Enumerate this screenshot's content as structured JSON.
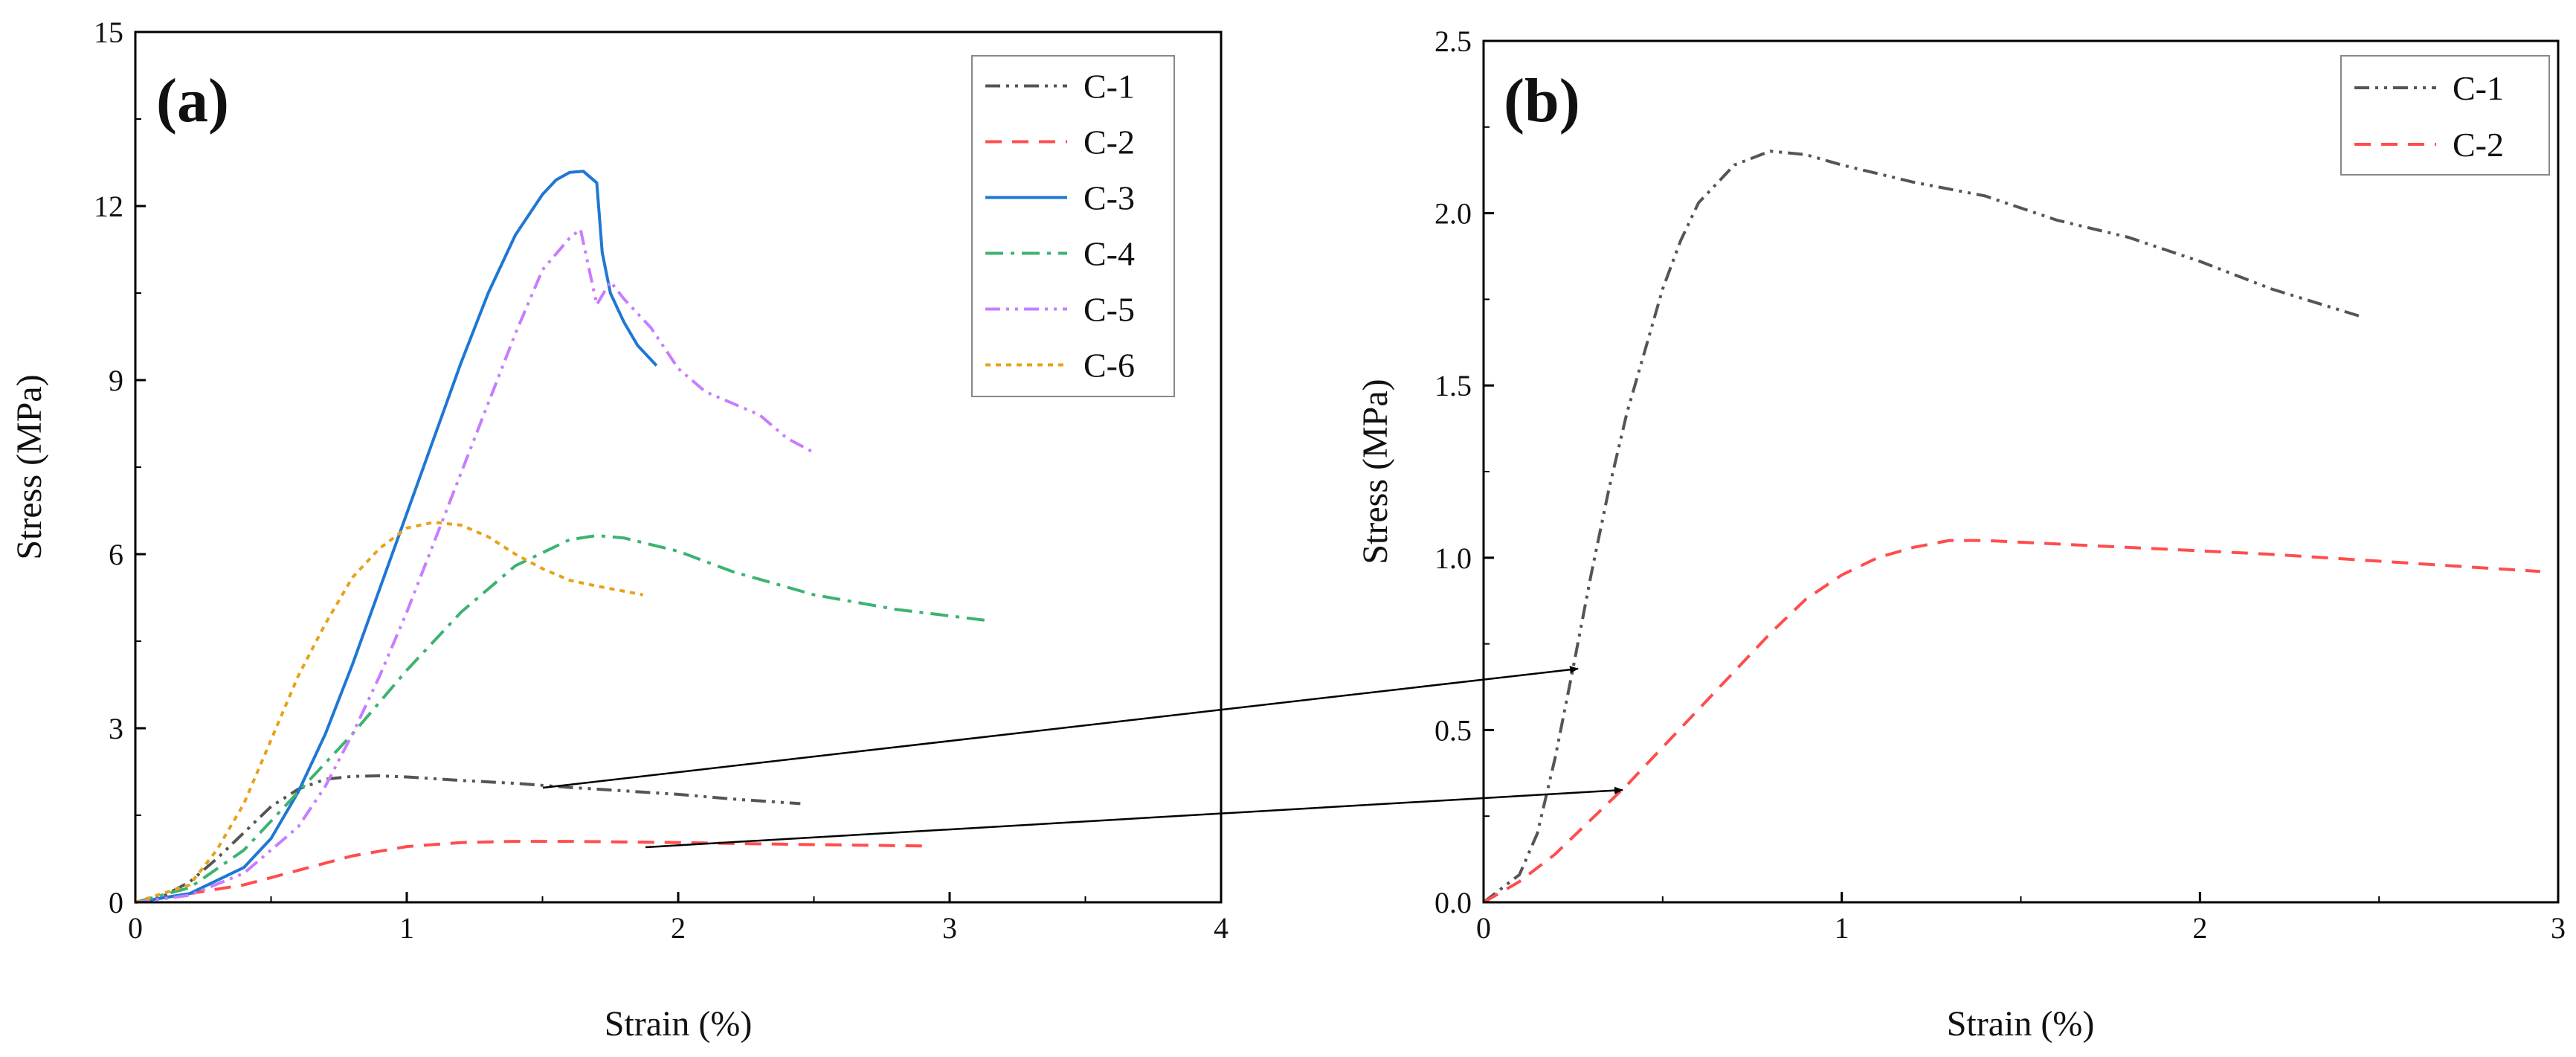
{
  "chart_data": [
    {
      "type": "line",
      "panel_label": "(a)",
      "xlabel": "Strain (%)",
      "ylabel": "Stress (MPa)",
      "xlim": [
        0,
        4
      ],
      "ylim": [
        0,
        15
      ],
      "xticks": [
        "0",
        "1",
        "2",
        "3",
        "4"
      ],
      "yticks": [
        "0",
        "3",
        "6",
        "9",
        "12",
        "15"
      ],
      "legend_position": "top-right",
      "series": [
        {
          "name": "C-1",
          "color": "#555555",
          "dash": "dashdotdot",
          "x": [
            0,
            0.1,
            0.2,
            0.3,
            0.4,
            0.5,
            0.6,
            0.7,
            0.8,
            0.9,
            1.0,
            1.2,
            1.4,
            1.6,
            1.8,
            2.0,
            2.2,
            2.45
          ],
          "y": [
            0,
            0.1,
            0.35,
            0.75,
            1.2,
            1.65,
            1.95,
            2.12,
            2.17,
            2.18,
            2.16,
            2.1,
            2.05,
            1.98,
            1.92,
            1.86,
            1.78,
            1.7
          ]
        },
        {
          "name": "C-2",
          "color": "#ff4d4d",
          "dash": "dashed",
          "x": [
            0,
            0.2,
            0.4,
            0.6,
            0.8,
            1.0,
            1.2,
            1.4,
            1.6,
            2.0,
            2.4,
            2.9
          ],
          "y": [
            0,
            0.15,
            0.3,
            0.55,
            0.8,
            0.96,
            1.03,
            1.05,
            1.05,
            1.03,
            1.0,
            0.97
          ]
        },
        {
          "name": "C-3",
          "color": "#1f77d4",
          "dash": "solid",
          "x": [
            0,
            0.2,
            0.4,
            0.5,
            0.6,
            0.7,
            0.8,
            0.9,
            1.0,
            1.1,
            1.2,
            1.3,
            1.4,
            1.5,
            1.55,
            1.6,
            1.65,
            1.7,
            1.72,
            1.75,
            1.8,
            1.85,
            1.92
          ],
          "y": [
            0,
            0.15,
            0.6,
            1.1,
            1.9,
            2.9,
            4.1,
            5.4,
            6.7,
            8.0,
            9.3,
            10.5,
            11.5,
            12.2,
            12.45,
            12.58,
            12.6,
            12.4,
            11.2,
            10.5,
            10.0,
            9.6,
            9.25
          ]
        },
        {
          "name": "C-4",
          "color": "#3cb371",
          "dash": "dashdot",
          "x": [
            0,
            0.2,
            0.4,
            0.6,
            0.8,
            1.0,
            1.2,
            1.4,
            1.6,
            1.7,
            1.8,
            2.0,
            2.2,
            2.5,
            2.8,
            3.15
          ],
          "y": [
            0,
            0.25,
            0.9,
            1.9,
            2.9,
            4.0,
            5.0,
            5.8,
            6.25,
            6.32,
            6.28,
            6.05,
            5.7,
            5.3,
            5.05,
            4.85
          ]
        },
        {
          "name": "C-5",
          "color": "#c77dff",
          "dash": "dashdotdot",
          "x": [
            0,
            0.2,
            0.4,
            0.6,
            0.7,
            0.8,
            0.9,
            1.0,
            1.1,
            1.2,
            1.3,
            1.4,
            1.5,
            1.6,
            1.64,
            1.7,
            1.75,
            1.8,
            1.9,
            2.0,
            2.1,
            2.2,
            2.3,
            2.4,
            2.5
          ],
          "y": [
            0,
            0.12,
            0.5,
            1.3,
            2.0,
            2.9,
            3.9,
            5.0,
            6.2,
            7.4,
            8.6,
            9.8,
            10.9,
            11.45,
            11.6,
            10.3,
            10.7,
            10.4,
            9.9,
            9.2,
            8.8,
            8.6,
            8.4,
            8.0,
            7.75
          ]
        },
        {
          "name": "C-6",
          "color": "#e6a21a",
          "dash": "dotted",
          "x": [
            0,
            0.2,
            0.3,
            0.4,
            0.5,
            0.6,
            0.7,
            0.8,
            0.9,
            1.0,
            1.1,
            1.2,
            1.3,
            1.4,
            1.5,
            1.6,
            1.7,
            1.87
          ],
          "y": [
            0,
            0.3,
            0.9,
            1.7,
            2.8,
            3.9,
            4.8,
            5.6,
            6.1,
            6.45,
            6.55,
            6.5,
            6.3,
            6.0,
            5.75,
            5.55,
            5.45,
            5.3
          ]
        }
      ]
    },
    {
      "type": "line",
      "panel_label": "(b)",
      "xlabel": "Strain (%)",
      "ylabel": "Stress (MPa)",
      "xlim": [
        0,
        3
      ],
      "ylim": [
        0,
        2.5
      ],
      "xticks": [
        "0",
        "1",
        "2",
        "3"
      ],
      "yticks": [
        "0.0",
        "0.5",
        "1.0",
        "1.5",
        "2.0",
        "2.5"
      ],
      "legend_position": "top-right",
      "series": [
        {
          "name": "C-1",
          "color": "#555555",
          "dash": "dashdotdot",
          "x": [
            0,
            0.1,
            0.15,
            0.2,
            0.25,
            0.3,
            0.35,
            0.4,
            0.45,
            0.5,
            0.55,
            0.6,
            0.7,
            0.8,
            0.9,
            1.0,
            1.2,
            1.4,
            1.6,
            1.8,
            2.0,
            2.2,
            2.45
          ],
          "y": [
            0,
            0.08,
            0.2,
            0.42,
            0.68,
            0.95,
            1.2,
            1.42,
            1.6,
            1.78,
            1.92,
            2.03,
            2.14,
            2.18,
            2.17,
            2.14,
            2.09,
            2.05,
            1.98,
            1.93,
            1.86,
            1.78,
            1.7
          ]
        },
        {
          "name": "C-2",
          "color": "#ff4d4d",
          "dash": "dashed",
          "x": [
            0,
            0.1,
            0.2,
            0.3,
            0.4,
            0.5,
            0.6,
            0.7,
            0.8,
            0.9,
            1.0,
            1.1,
            1.2,
            1.3,
            1.4,
            1.6,
            1.8,
            2.0,
            2.2,
            2.5,
            2.8,
            2.95
          ],
          "y": [
            0,
            0.06,
            0.14,
            0.24,
            0.34,
            0.45,
            0.56,
            0.67,
            0.78,
            0.88,
            0.95,
            1.0,
            1.03,
            1.05,
            1.05,
            1.04,
            1.03,
            1.02,
            1.01,
            0.99,
            0.97,
            0.96
          ]
        }
      ]
    }
  ]
}
